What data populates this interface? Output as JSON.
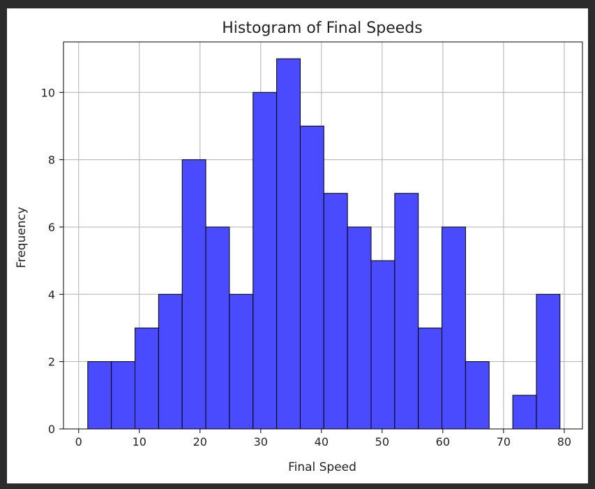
{
  "chart_data": {
    "type": "bar",
    "title": "Histogram of Final Speeds",
    "xlabel": "Final Speed",
    "ylabel": "Frequency",
    "bar_color": "#4a4aff",
    "edge_color": "#000000",
    "grid": true,
    "xlim": [
      -2.5,
      83
    ],
    "ylim": [
      0,
      11.5
    ],
    "x_ticks": [
      "0",
      "10",
      "20",
      "30",
      "40",
      "50",
      "60",
      "70",
      "80"
    ],
    "y_ticks": [
      "0",
      "2",
      "4",
      "6",
      "8",
      "10"
    ],
    "bin_edges": [
      1.5,
      5.39,
      9.28,
      13.17,
      17.06,
      20.95,
      24.84,
      28.73,
      32.62,
      36.51,
      40.4,
      44.29,
      48.18,
      52.07,
      55.96,
      59.85,
      63.74,
      67.63,
      71.52,
      75.41,
      79.3
    ],
    "values": [
      2,
      2,
      3,
      4,
      8,
      6,
      4,
      10,
      11,
      9,
      7,
      6,
      5,
      7,
      3,
      6,
      2,
      0,
      1,
      4
    ]
  }
}
